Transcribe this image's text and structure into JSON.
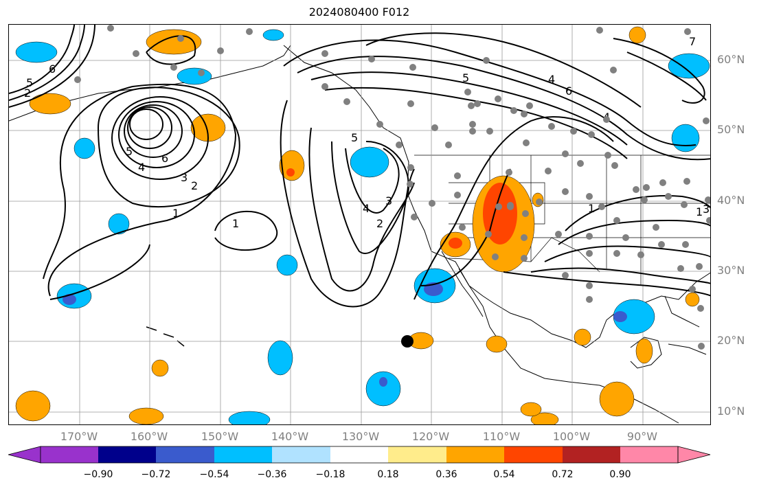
{
  "title": "2024080400 F012",
  "lat_labels": [
    "60°N",
    "50°N",
    "40°N",
    "30°N",
    "20°N",
    "10°N"
  ],
  "lon_labels": [
    "170°W",
    "160°W",
    "150°W",
    "140°W",
    "130°W",
    "120°W",
    "110°W",
    "100°W",
    "90°W"
  ],
  "colorbar": {
    "ticks": [
      "−0.90",
      "−0.72",
      "−0.54",
      "−0.36",
      "−0.18",
      "0.18",
      "0.36",
      "0.54",
      "0.72",
      "0.90"
    ],
    "colors": [
      "#9932cc",
      "#00008b",
      "#3a5bcd",
      "#00bfff",
      "#b0e2ff",
      "#ffffff",
      "#ffec8b",
      "#ffa500",
      "#ff4500",
      "#b22222",
      "#ff87a8"
    ]
  },
  "contour_labels": [
    "1",
    "1",
    "1",
    "1",
    "2",
    "2",
    "2",
    "3",
    "3",
    "3",
    "4",
    "4",
    "4",
    "4",
    "5",
    "5",
    "5",
    "5",
    "6",
    "6",
    "6",
    "7"
  ],
  "marker": {
    "lon": -123,
    "lat": 20
  },
  "grid": true,
  "projection": "plate-carree",
  "extent": {
    "lon": [
      -180,
      -80
    ],
    "lat": [
      8,
      65
    ]
  }
}
